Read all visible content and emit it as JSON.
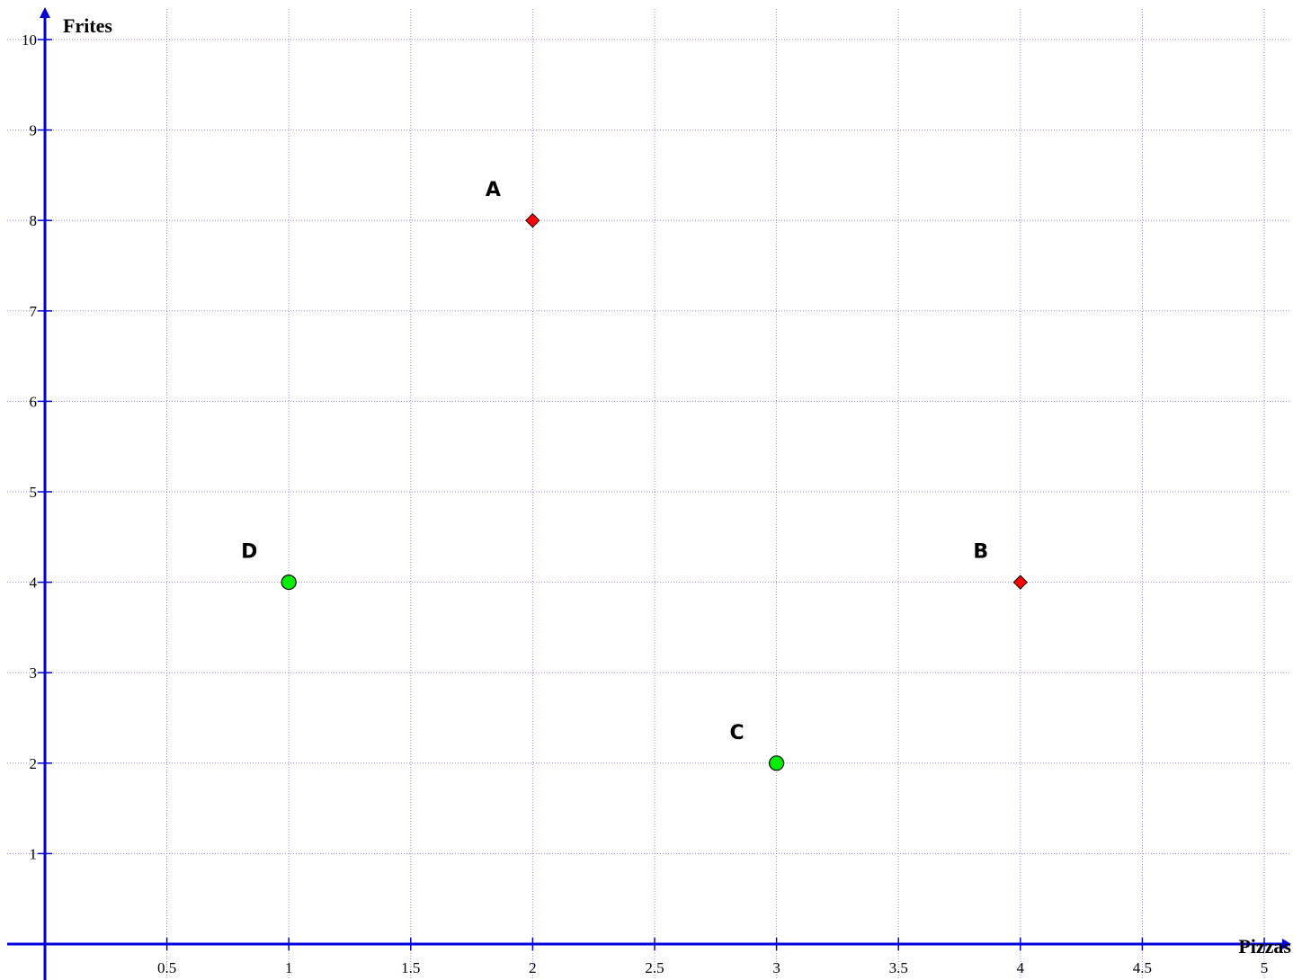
{
  "chart_data": {
    "type": "scatter",
    "xlabel": "Pizzas",
    "ylabel": "Frites",
    "xlim": [
      0,
      5
    ],
    "ylim": [
      0,
      10
    ],
    "x_ticks": [
      "0.5",
      "1",
      "1.5",
      "2",
      "2.5",
      "3",
      "3.5",
      "4",
      "4.5",
      "5"
    ],
    "y_ticks": [
      "1",
      "2",
      "3",
      "4",
      "5",
      "6",
      "7",
      "8",
      "9",
      "10"
    ],
    "grid": true,
    "points": [
      {
        "label": "A",
        "x": 2,
        "y": 8,
        "shape": "diamond",
        "color": "#ff0000"
      },
      {
        "label": "B",
        "x": 4,
        "y": 4,
        "shape": "diamond",
        "color": "#ff0000"
      },
      {
        "label": "C",
        "x": 3,
        "y": 2,
        "shape": "circle",
        "color": "#00ee00"
      },
      {
        "label": "D",
        "x": 1,
        "y": 4,
        "shape": "circle",
        "color": "#00ee00"
      }
    ],
    "colors": {
      "axis": "#0000dd",
      "grid": "#8888ee"
    }
  }
}
